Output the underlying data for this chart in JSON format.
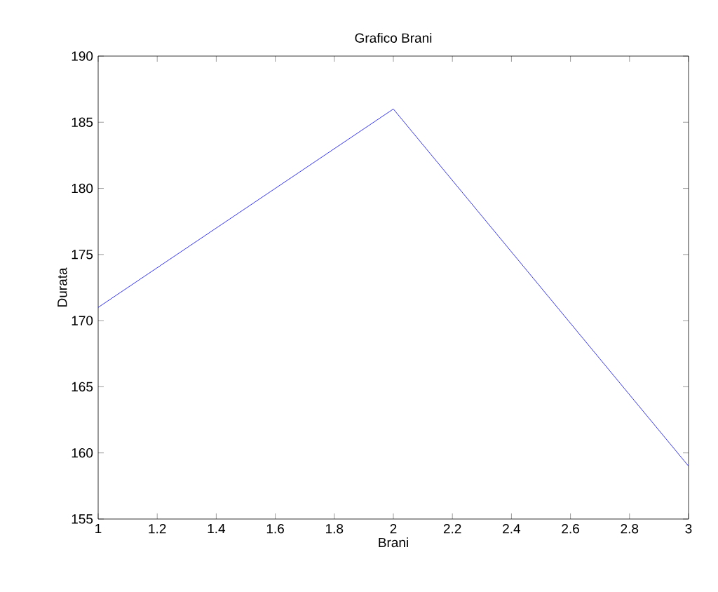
{
  "chart_data": {
    "type": "line",
    "title": "Grafico Brani",
    "xlabel": "Brani",
    "ylabel": "Durata",
    "x": [
      1,
      2,
      3
    ],
    "series": [
      {
        "color": "#0000ff",
        "values": [
          171,
          186,
          159
        ]
      }
    ],
    "xlim": [
      1,
      3
    ],
    "xticks": [
      1,
      1.2,
      1.4,
      1.6,
      1.8,
      2,
      2.2,
      2.4,
      2.6,
      2.8,
      3
    ],
    "ylim": [
      155,
      190
    ],
    "yticks": [
      155,
      160,
      165,
      170,
      175,
      180,
      185,
      190
    ],
    "grid": false,
    "marker": "none",
    "line_style": "solid"
  }
}
